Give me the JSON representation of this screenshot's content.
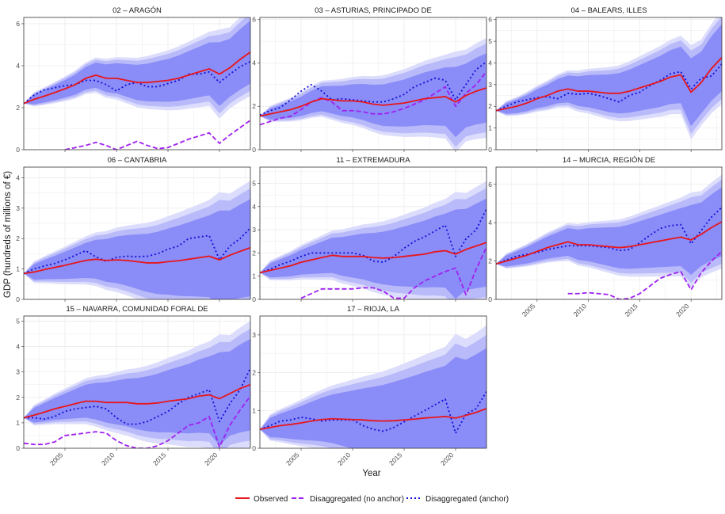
{
  "figure": {
    "ylabel": "GDP (hundreds of millions of €)",
    "xlabel": "Year",
    "legend": {
      "placement": "bottom-center",
      "items": [
        {
          "key": "observed",
          "label": "Observed"
        },
        {
          "key": "no_anchor",
          "label": "Disaggregated (no anchor)"
        },
        {
          "key": "anchor",
          "label": "Disaggregated (anchor)"
        }
      ]
    },
    "colors": {
      "observed": "#e8161b",
      "no_anchor": "#a020f0",
      "anchor": "#1010d8",
      "band_inner": "#8a8cf8",
      "band_mid": "#b9baf9",
      "band_outer": "#dcdcfc",
      "grid": "#ebebeb"
    }
  },
  "chart_data": [
    {
      "type": "line",
      "title": "02 – ARAGÓN",
      "x": [
        2001,
        2002,
        2003,
        2004,
        2005,
        2006,
        2007,
        2008,
        2009,
        2010,
        2011,
        2012,
        2013,
        2014,
        2015,
        2016,
        2017,
        2018,
        2019,
        2020,
        2021,
        2022,
        2023
      ],
      "xlim": [
        2001,
        2023
      ],
      "ylim": [
        0,
        6.3
      ],
      "yticks": [
        0,
        2,
        4,
        6
      ],
      "xtick_labels_shown": false,
      "series": [
        {
          "key": "observed",
          "name": "Observed",
          "values": [
            2.2,
            2.4,
            2.55,
            2.72,
            2.9,
            3.1,
            3.4,
            3.55,
            3.4,
            3.4,
            3.3,
            3.2,
            3.2,
            3.25,
            3.3,
            3.4,
            3.55,
            3.7,
            3.85,
            3.6,
            3.9,
            4.3,
            4.65
          ]
        },
        {
          "key": "no_anchor",
          "name": "Disaggregated (no anchor)",
          "values": [
            null,
            null,
            null,
            null,
            0.0,
            0.1,
            0.2,
            0.35,
            0.2,
            0.0,
            0.2,
            0.4,
            0.2,
            0.05,
            0.1,
            0.3,
            0.5,
            0.65,
            0.8,
            0.3,
            0.7,
            1.05,
            1.4
          ]
        },
        {
          "key": "anchor",
          "name": "Disaggregated (anchor)",
          "values": [
            2.2,
            2.6,
            2.85,
            2.95,
            3.05,
            3.1,
            3.3,
            3.3,
            3.1,
            2.8,
            3.1,
            3.2,
            3.0,
            3.0,
            3.15,
            3.3,
            3.6,
            3.6,
            3.7,
            3.2,
            3.6,
            3.95,
            4.2
          ]
        }
      ],
      "band_halfwidth_end": {
        "inner": 1.5,
        "mid": 1.85,
        "outer": 2.1
      }
    },
    {
      "type": "line",
      "title": "03 – ASTURIAS, PRINCIPADO DE",
      "x": [
        2001,
        2002,
        2003,
        2004,
        2005,
        2006,
        2007,
        2008,
        2009,
        2010,
        2011,
        2012,
        2013,
        2014,
        2015,
        2016,
        2017,
        2018,
        2019,
        2020,
        2021,
        2022,
        2023
      ],
      "xlim": [
        2001,
        2023
      ],
      "ylim": [
        0,
        6.1
      ],
      "yticks": [
        0,
        2,
        4,
        6
      ],
      "xtick_labels_shown": false,
      "series": [
        {
          "key": "observed",
          "name": "Observed",
          "values": [
            1.55,
            1.65,
            1.75,
            1.85,
            2.0,
            2.2,
            2.35,
            2.3,
            2.25,
            2.25,
            2.2,
            2.1,
            2.05,
            2.1,
            2.15,
            2.25,
            2.35,
            2.4,
            2.45,
            2.2,
            2.5,
            2.7,
            2.85
          ]
        },
        {
          "key": "no_anchor",
          "name": "Disaggregated (no anchor)",
          "values": [
            1.15,
            1.3,
            1.45,
            1.55,
            1.85,
            2.2,
            2.4,
            2.2,
            1.8,
            1.8,
            1.75,
            1.65,
            1.65,
            1.75,
            1.9,
            2.1,
            2.3,
            2.6,
            2.9,
            2.0,
            2.6,
            3.0,
            3.6
          ]
        },
        {
          "key": "anchor",
          "name": "Disaggregated (anchor)",
          "values": [
            1.6,
            1.8,
            1.95,
            2.3,
            2.7,
            3.0,
            2.7,
            2.3,
            2.35,
            2.3,
            2.25,
            2.2,
            2.2,
            2.35,
            2.55,
            2.9,
            3.1,
            3.3,
            3.2,
            2.3,
            3.0,
            3.7,
            4.05
          ]
        }
      ],
      "band_halfwidth_end": {
        "inner": 1.6,
        "mid": 2.05,
        "outer": 2.3
      }
    },
    {
      "type": "line",
      "title": "04 – BALEARS, ILLES",
      "x": [
        2001,
        2002,
        2003,
        2004,
        2005,
        2006,
        2007,
        2008,
        2009,
        2010,
        2011,
        2012,
        2013,
        2014,
        2015,
        2016,
        2017,
        2018,
        2019,
        2020,
        2021,
        2022,
        2023
      ],
      "xlim": [
        2001,
        2023
      ],
      "ylim": [
        0,
        6.1
      ],
      "yticks": [
        0,
        1,
        2,
        3,
        4,
        5,
        6
      ],
      "xtick_labels_shown": false,
      "series": [
        {
          "key": "observed",
          "name": "Observed",
          "values": [
            1.8,
            1.9,
            2.0,
            2.15,
            2.35,
            2.5,
            2.7,
            2.8,
            2.7,
            2.7,
            2.65,
            2.6,
            2.6,
            2.7,
            2.85,
            3.0,
            3.15,
            3.35,
            3.45,
            2.65,
            3.1,
            3.75,
            4.25
          ]
        },
        {
          "key": "no_anchor",
          "name": "Disaggregated (no anchor)",
          "values": [
            null,
            null,
            null,
            null,
            null,
            null,
            null,
            null,
            null,
            null,
            null,
            null,
            null,
            null,
            null,
            null,
            null,
            null,
            0.3,
            null,
            null,
            null,
            0.7
          ]
        },
        {
          "key": "anchor",
          "name": "Disaggregated (anchor)",
          "values": [
            1.8,
            2.0,
            2.2,
            2.3,
            2.4,
            2.45,
            2.35,
            2.6,
            2.55,
            2.6,
            2.5,
            2.35,
            2.2,
            2.5,
            2.65,
            2.95,
            3.2,
            3.5,
            3.6,
            2.8,
            3.3,
            3.4,
            3.95
          ]
        }
      ],
      "band_halfwidth_end": {
        "inner": 1.55,
        "mid": 1.9,
        "outer": 2.15
      }
    },
    {
      "type": "line",
      "title": "06 – CANTABRIA",
      "x": [
        2001,
        2002,
        2003,
        2004,
        2005,
        2006,
        2007,
        2008,
        2009,
        2010,
        2011,
        2012,
        2013,
        2014,
        2015,
        2016,
        2017,
        2018,
        2019,
        2020,
        2021,
        2022,
        2023
      ],
      "xlim": [
        2001,
        2023
      ],
      "ylim": [
        0,
        4.35
      ],
      "yticks": [
        0,
        1,
        2,
        3,
        4
      ],
      "xtick_labels_shown": false,
      "series": [
        {
          "key": "observed",
          "name": "Observed",
          "values": [
            0.85,
            0.9,
            0.98,
            1.05,
            1.12,
            1.2,
            1.28,
            1.32,
            1.28,
            1.3,
            1.28,
            1.24,
            1.2,
            1.2,
            1.24,
            1.27,
            1.32,
            1.37,
            1.42,
            1.3,
            1.45,
            1.58,
            1.7
          ]
        },
        {
          "key": "no_anchor",
          "name": "Disaggregated (no anchor)",
          "values": [
            null,
            null,
            null,
            null,
            null,
            null,
            null,
            null,
            null,
            null,
            null,
            null,
            null,
            null,
            null,
            null,
            null,
            null,
            null,
            null,
            null,
            null,
            null
          ]
        },
        {
          "key": "anchor",
          "name": "Disaggregated (anchor)",
          "values": [
            0.85,
            1.0,
            1.1,
            1.18,
            1.3,
            1.45,
            1.6,
            1.4,
            1.25,
            1.38,
            1.42,
            1.4,
            1.42,
            1.5,
            1.65,
            1.75,
            2.0,
            2.05,
            2.1,
            1.3,
            1.75,
            2.0,
            2.35
          ]
        }
      ],
      "band_halfwidth_end": {
        "inner": 1.6,
        "mid": 1.95,
        "outer": 2.2
      }
    },
    {
      "type": "line",
      "title": "11 – EXTREMADURA",
      "x": [
        2001,
        2002,
        2003,
        2004,
        2005,
        2006,
        2007,
        2008,
        2009,
        2010,
        2011,
        2012,
        2013,
        2014,
        2015,
        2016,
        2017,
        2018,
        2019,
        2020,
        2021,
        2022,
        2023
      ],
      "xlim": [
        2001,
        2023
      ],
      "ylim": [
        0,
        5.7
      ],
      "yticks": [
        0,
        1,
        2,
        3,
        4,
        5
      ],
      "xtick_labels_shown": false,
      "series": [
        {
          "key": "observed",
          "name": "Observed",
          "values": [
            1.15,
            1.25,
            1.35,
            1.45,
            1.6,
            1.7,
            1.8,
            1.9,
            1.85,
            1.85,
            1.85,
            1.8,
            1.78,
            1.8,
            1.85,
            1.9,
            1.95,
            2.05,
            2.1,
            1.95,
            2.15,
            2.3,
            2.45
          ]
        },
        {
          "key": "no_anchor",
          "name": "Disaggregated (no anchor)",
          "values": [
            null,
            null,
            null,
            null,
            0.05,
            0.25,
            0.45,
            0.45,
            0.45,
            0.45,
            0.5,
            0.5,
            0.35,
            0.05,
            0.05,
            0.5,
            0.8,
            1.0,
            1.2,
            1.35,
            0.2,
            1.3,
            2.25
          ]
        },
        {
          "key": "anchor",
          "name": "Disaggregated (anchor)",
          "values": [
            1.15,
            1.3,
            1.5,
            1.65,
            1.85,
            2.0,
            2.0,
            2.0,
            2.0,
            2.0,
            1.9,
            1.65,
            1.6,
            1.85,
            2.2,
            2.5,
            2.7,
            2.95,
            3.2,
            1.85,
            2.6,
            3.0,
            3.9
          ]
        }
      ],
      "band_halfwidth_end": {
        "inner": 1.9,
        "mid": 2.35,
        "outer": 2.65
      }
    },
    {
      "type": "line",
      "title": "14 – MURCIA, REGIÓN DE",
      "x": [
        2001,
        2002,
        2003,
        2004,
        2005,
        2006,
        2007,
        2008,
        2009,
        2010,
        2011,
        2012,
        2013,
        2014,
        2015,
        2016,
        2017,
        2018,
        2019,
        2020,
        2021,
        2022,
        2023
      ],
      "xlim": [
        2001,
        2023
      ],
      "ylim": [
        0,
        6.9
      ],
      "yticks": [
        0,
        2,
        4,
        6
      ],
      "xtick_labels": [
        "2005",
        "2010",
        "2015",
        "2020"
      ],
      "xtick_labels_shown": true,
      "series": [
        {
          "key": "observed",
          "name": "Observed",
          "values": [
            1.85,
            2.0,
            2.15,
            2.3,
            2.5,
            2.7,
            2.85,
            3.0,
            2.85,
            2.85,
            2.8,
            2.75,
            2.7,
            2.75,
            2.85,
            2.95,
            3.05,
            3.15,
            3.25,
            3.1,
            3.4,
            3.75,
            4.05
          ]
        },
        {
          "key": "no_anchor",
          "name": "Disaggregated (no anchor)",
          "values": [
            null,
            null,
            null,
            null,
            null,
            null,
            null,
            0.3,
            0.3,
            0.35,
            0.3,
            0.25,
            0.0,
            0.05,
            0.3,
            0.7,
            1.1,
            1.3,
            1.45,
            0.5,
            1.4,
            2.0,
            2.5
          ]
        },
        {
          "key": "anchor",
          "name": "Disaggregated (anchor)",
          "values": [
            1.85,
            2.05,
            2.25,
            2.35,
            2.45,
            2.6,
            2.7,
            2.8,
            2.8,
            2.8,
            2.75,
            2.7,
            2.55,
            2.6,
            2.95,
            3.35,
            3.7,
            3.85,
            3.9,
            2.9,
            3.6,
            4.3,
            4.8
          ]
        }
      ],
      "band_halfwidth_end": {
        "inner": 1.8,
        "mid": 2.2,
        "outer": 2.45
      }
    },
    {
      "type": "line",
      "title": "15 – NAVARRA, COMUNIDAD FORAL DE",
      "x": [
        2001,
        2002,
        2003,
        2004,
        2005,
        2006,
        2007,
        2008,
        2009,
        2010,
        2011,
        2012,
        2013,
        2014,
        2015,
        2016,
        2017,
        2018,
        2019,
        2020,
        2021,
        2022,
        2023
      ],
      "xlim": [
        2001,
        2023
      ],
      "ylim": [
        0,
        5.2
      ],
      "yticks": [
        0,
        1,
        2,
        3,
        4,
        5
      ],
      "xtick_labels": [
        "2005",
        "2010",
        "2015",
        "2020"
      ],
      "xtick_labels_shown": true,
      "series": [
        {
          "key": "observed",
          "name": "Observed",
          "values": [
            1.2,
            1.3,
            1.42,
            1.55,
            1.65,
            1.75,
            1.85,
            1.85,
            1.8,
            1.8,
            1.8,
            1.75,
            1.75,
            1.78,
            1.85,
            1.9,
            1.95,
            2.05,
            2.1,
            1.95,
            2.15,
            2.35,
            2.5
          ]
        },
        {
          "key": "no_anchor",
          "name": "Disaggregated (no anchor)",
          "values": [
            0.2,
            0.15,
            0.15,
            0.25,
            0.5,
            0.55,
            0.6,
            0.65,
            0.6,
            0.3,
            0.1,
            0.0,
            0.0,
            0.1,
            0.3,
            0.6,
            0.9,
            1.0,
            1.25,
            0.05,
            0.9,
            1.5,
            2.05
          ]
        },
        {
          "key": "anchor",
          "name": "Disaggregated (anchor)",
          "values": [
            1.2,
            1.2,
            1.15,
            1.25,
            1.45,
            1.55,
            1.6,
            1.65,
            1.55,
            1.2,
            0.95,
            0.95,
            1.05,
            1.25,
            1.45,
            1.75,
            2.0,
            2.15,
            2.3,
            1.05,
            1.75,
            2.3,
            3.15
          ]
        }
      ],
      "band_halfwidth_end": {
        "inner": 1.8,
        "mid": 2.2,
        "outer": 2.5
      }
    },
    {
      "type": "line",
      "title": "17 – RIOJA, LA",
      "x": [
        2001,
        2002,
        2003,
        2004,
        2005,
        2006,
        2007,
        2008,
        2009,
        2010,
        2011,
        2012,
        2013,
        2014,
        2015,
        2016,
        2017,
        2018,
        2019,
        2020,
        2021,
        2022,
        2023
      ],
      "xlim": [
        2001,
        2023
      ],
      "ylim": [
        0,
        3.5
      ],
      "yticks": [
        0,
        1,
        2,
        3
      ],
      "xtick_labels": [
        "2005",
        "2010",
        "2015",
        "2020"
      ],
      "xtick_labels_shown": true,
      "series": [
        {
          "key": "observed",
          "name": "Observed",
          "values": [
            0.5,
            0.55,
            0.6,
            0.63,
            0.67,
            0.72,
            0.76,
            0.78,
            0.77,
            0.76,
            0.75,
            0.73,
            0.72,
            0.73,
            0.75,
            0.77,
            0.8,
            0.82,
            0.84,
            0.8,
            0.87,
            0.95,
            1.05
          ]
        },
        {
          "key": "no_anchor",
          "name": "Disaggregated (no anchor)",
          "values": [
            null,
            null,
            null,
            null,
            null,
            null,
            null,
            null,
            null,
            null,
            null,
            null,
            null,
            null,
            null,
            null,
            null,
            null,
            null,
            null,
            null,
            null,
            null
          ]
        },
        {
          "key": "anchor",
          "name": "Disaggregated (anchor)",
          "values": [
            0.5,
            0.6,
            0.72,
            0.75,
            0.82,
            0.78,
            0.72,
            0.75,
            0.75,
            0.75,
            0.6,
            0.5,
            0.45,
            0.55,
            0.7,
            0.85,
            1.0,
            1.15,
            1.3,
            0.4,
            0.9,
            1.05,
            1.5
          ]
        }
      ],
      "band_halfwidth_end": {
        "inner": 1.6,
        "mid": 1.95,
        "outer": 2.2
      }
    }
  ]
}
